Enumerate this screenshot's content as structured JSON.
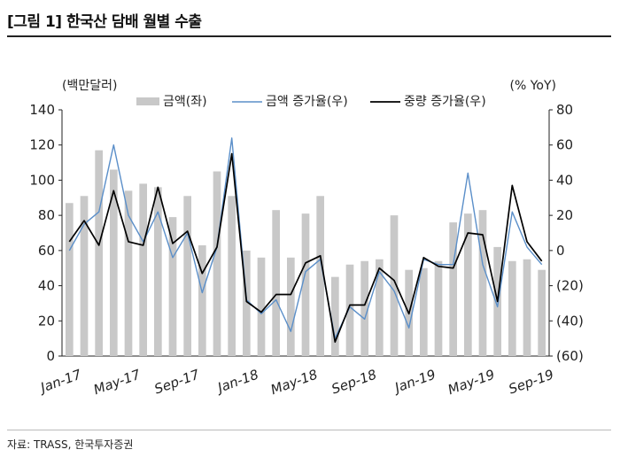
{
  "figure": {
    "title": "[그림 1] 한국산 담배 월별 수출",
    "source": "자료: TRASS, 한국투자증권"
  },
  "chart_data": {
    "type": "bar+line",
    "left_axis": {
      "unit": "(백만달러)",
      "ylim": [
        0,
        140
      ],
      "ticks": [
        0,
        20,
        40,
        60,
        80,
        100,
        120,
        140
      ]
    },
    "right_axis": {
      "unit": "(% YoY)",
      "ylim": [
        -60,
        80
      ],
      "ticks": [
        "(60)",
        "(40)",
        "(20)",
        "0",
        "20",
        "40",
        "60",
        "80"
      ]
    },
    "x_ticks": [
      {
        "label": "Jan-17",
        "index": 0
      },
      {
        "label": "May-17",
        "index": 4
      },
      {
        "label": "Sep-17",
        "index": 8
      },
      {
        "label": "Jan-18",
        "index": 12
      },
      {
        "label": "May-18",
        "index": 16
      },
      {
        "label": "Sep-18",
        "index": 20
      },
      {
        "label": "Jan-19",
        "index": 24
      },
      {
        "label": "May-19",
        "index": 28
      },
      {
        "label": "Sep-19",
        "index": 32
      }
    ],
    "months": [
      "Jan-17",
      "Feb-17",
      "Mar-17",
      "Apr-17",
      "May-17",
      "Jun-17",
      "Jul-17",
      "Aug-17",
      "Sep-17",
      "Oct-17",
      "Nov-17",
      "Dec-17",
      "Jan-18",
      "Feb-18",
      "Mar-18",
      "Apr-18",
      "May-18",
      "Jun-18",
      "Jul-18",
      "Aug-18",
      "Sep-18",
      "Oct-18",
      "Nov-18",
      "Dec-18",
      "Jan-19",
      "Feb-19",
      "Mar-19",
      "Apr-19",
      "May-19",
      "Jun-19",
      "Jul-19",
      "Aug-19",
      "Sep-19"
    ],
    "legend": [
      "금액(좌)",
      "금액 증가율(우)",
      "중량 증가율(우)"
    ],
    "series": [
      {
        "name": "금액(좌)",
        "axis": "left",
        "kind": "bar",
        "color": "#c8c8c8",
        "values": [
          87,
          91,
          117,
          106,
          94,
          98,
          96,
          79,
          91,
          63,
          105,
          91,
          60,
          56,
          83,
          56,
          81,
          91,
          45,
          52,
          54,
          55,
          80,
          49,
          50,
          54,
          76,
          81,
          83,
          62,
          54,
          55,
          49
        ]
      },
      {
        "name": "금액 증가율(우)",
        "axis": "right",
        "kind": "line",
        "color": "#5b8fc9",
        "values": [
          0,
          15,
          22,
          60,
          20,
          5,
          22,
          -4,
          10,
          -24,
          2,
          64,
          -28,
          -36,
          -28,
          -46,
          -12,
          -5,
          -50,
          -32,
          -39,
          -12,
          -23,
          -44,
          -5,
          -8,
          -8,
          44,
          -8,
          -32,
          22,
          2,
          -8
        ]
      },
      {
        "name": "중량 증가율(우)",
        "axis": "right",
        "kind": "line",
        "color": "#000000",
        "values": [
          5,
          17,
          3,
          34,
          5,
          3,
          36,
          4,
          11,
          -13,
          2,
          55,
          -29,
          -35,
          -25,
          -25,
          -7,
          -3,
          -52,
          -31,
          -31,
          -10,
          -17,
          -36,
          -4,
          -9,
          -10,
          10,
          9,
          -29,
          37,
          5,
          -6
        ]
      }
    ]
  }
}
